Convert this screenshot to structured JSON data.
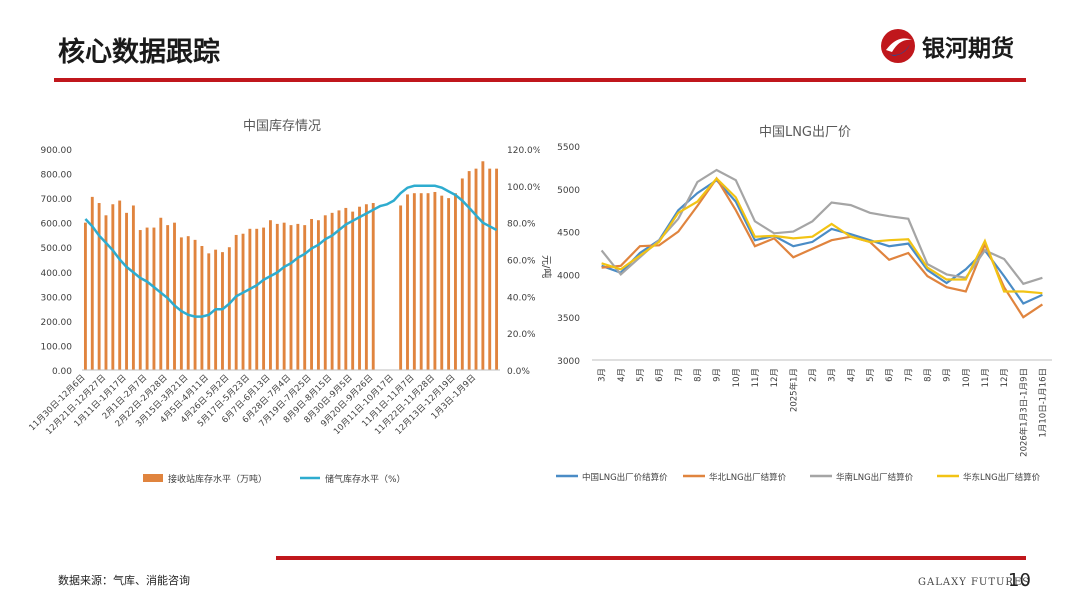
{
  "header": {
    "title": "核心数据跟踪",
    "brand_name": "银河期货"
  },
  "footer": {
    "source": "数据来源：气库、消能咨询",
    "brand_en": "GALAXY FUTURES",
    "page_number": "10"
  },
  "colors": {
    "accent": "#c0171c",
    "bar": "#e0843e",
    "line_cn": "#2eaccf",
    "cn": "#4a8cc6",
    "north": "#e0843e",
    "south": "#a5a5a5",
    "east": "#f2c314"
  },
  "chart_data": [
    {
      "type": "bar",
      "title": "中国库存情况",
      "xlabel": "",
      "ylabel": "",
      "ylim": [
        0,
        900
      ],
      "yticks": [
        "900.00",
        "800.00",
        "700.00",
        "600.00",
        "500.00",
        "400.00",
        "300.00",
        "200.00",
        "100.00",
        "0.00"
      ],
      "y2lim": [
        0,
        120
      ],
      "y2ticks": [
        "120.0%",
        "100.0%",
        "80.0%",
        "60.0%",
        "40.0%",
        "20.0%",
        "0.0%"
      ],
      "tick_labels": [
        "11月30日-12月6日",
        "12月21日-12月27日",
        "1月11日-1月17日",
        "2月1日-2月7日",
        "2月22日-2月28日",
        "3月15日-3月21日",
        "4月5日-4月11日",
        "4月26日-5月2日",
        "5月17日-5月23日",
        "6月7日-6月13日",
        "6月28日-7月4日",
        "7月19日-7月25日",
        "8月9日-8月15日",
        "8月30日-9月5日",
        "9月20日-9月26日",
        "10月11日-10月17日",
        "11月1日-11月7日",
        "11月22日-11月28日",
        "12月13日-12月19日",
        "1月3日-1月9日"
      ],
      "series": [
        {
          "name": "接收站库存水平（万吨）",
          "kind": "bar",
          "axis": "left",
          "values": [
            600,
            705,
            680,
            630,
            675,
            690,
            640,
            670,
            570,
            580,
            580,
            620,
            590,
            600,
            540,
            545,
            530,
            505,
            475,
            490,
            480,
            500,
            550,
            555,
            575,
            575,
            580,
            610,
            595,
            600,
            590,
            595,
            590,
            615,
            610,
            630,
            640,
            650,
            660,
            645,
            665,
            675,
            680,
            0,
            0,
            0,
            670,
            715,
            720,
            720,
            720,
            725,
            710,
            700,
            720,
            780,
            810,
            820,
            850,
            820,
            820
          ]
        },
        {
          "name": "储气库存水平（%）",
          "kind": "line",
          "axis": "right",
          "values": [
            82,
            78,
            73,
            69,
            65,
            60,
            56,
            53,
            50,
            48,
            45,
            42,
            39,
            35,
            32,
            30,
            29,
            29,
            30,
            33,
            33,
            36,
            40,
            42,
            44,
            46,
            49,
            51,
            53,
            56,
            58,
            61,
            63,
            66,
            68,
            71,
            73,
            76,
            79,
            81,
            83,
            85,
            87,
            89,
            90,
            92,
            96,
            99,
            100,
            100,
            100,
            100,
            99,
            97,
            95,
            92,
            88,
            84,
            80,
            78,
            76
          ]
        }
      ]
    },
    {
      "type": "line",
      "title": "中国LNG出厂价",
      "ylabel": "元/吨",
      "ylim": [
        3000,
        5500
      ],
      "yticks": [
        3000,
        3500,
        4000,
        4500,
        5000,
        5500
      ],
      "categories": [
        "3月",
        "4月",
        "5月",
        "6月",
        "7月",
        "8月",
        "9月",
        "10月",
        "11月",
        "12月",
        "2025年1月",
        "2月",
        "3月",
        "4月",
        "5月",
        "6月",
        "7月",
        "8月",
        "9月",
        "10月",
        "11月",
        "12月",
        "2026年1月3日-1月9日",
        "1月10日-1月16日"
      ],
      "series": [
        {
          "name": "中国LNG出厂价结算价",
          "values": [
            4100,
            4020,
            4250,
            4400,
            4750,
            4950,
            5100,
            4850,
            4400,
            4450,
            4330,
            4380,
            4530,
            4470,
            4400,
            4330,
            4360,
            4050,
            3900,
            4060,
            4280,
            3980,
            3660,
            3760
          ]
        },
        {
          "name": "华北LNG出厂结算价",
          "values": [
            4080,
            4100,
            4330,
            4340,
            4500,
            4800,
            5120,
            4750,
            4330,
            4420,
            4200,
            4300,
            4400,
            4440,
            4380,
            4170,
            4250,
            3980,
            3850,
            3800,
            4350,
            3850,
            3500,
            3650
          ]
        },
        {
          "name": "华南LNG出厂结算价",
          "values": [
            4280,
            4000,
            4200,
            4400,
            4650,
            5080,
            5220,
            5100,
            4620,
            4480,
            4500,
            4620,
            4840,
            4810,
            4720,
            4680,
            4650,
            4120,
            4000,
            3960,
            4280,
            4180,
            3890,
            3960
          ]
        },
        {
          "name": "华东LNG出厂结算价",
          "values": [
            4130,
            4060,
            4220,
            4380,
            4720,
            4850,
            5120,
            4900,
            4440,
            4450,
            4420,
            4440,
            4590,
            4440,
            4380,
            4400,
            4410,
            4080,
            3940,
            3940,
            4390,
            3800,
            3800,
            3780
          ]
        }
      ]
    }
  ]
}
